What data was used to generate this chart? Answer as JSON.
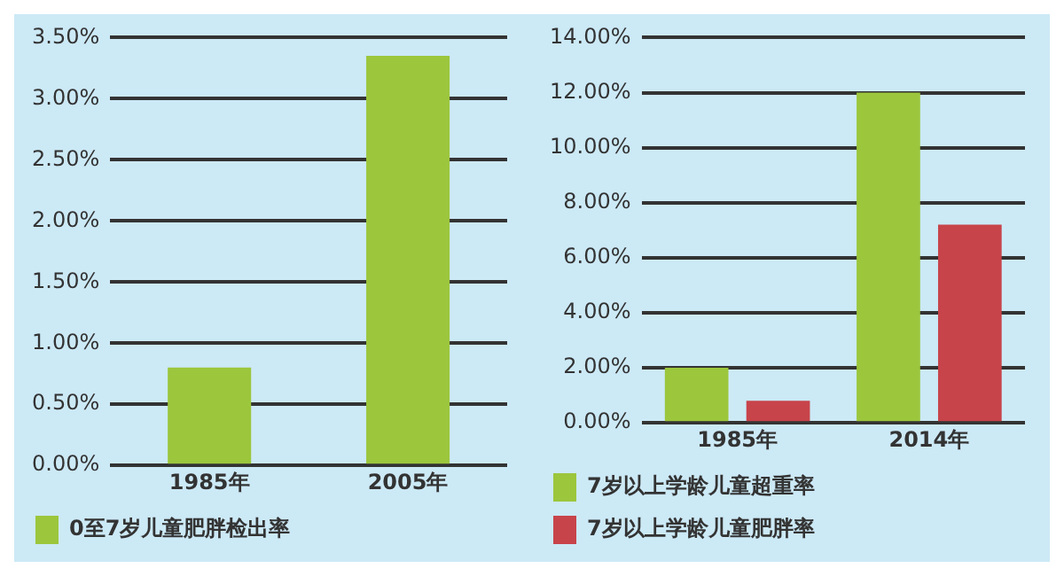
{
  "chart_data": [
    {
      "type": "bar",
      "categories": [
        "1985年",
        "2005年"
      ],
      "series": [
        {
          "name": "0至7岁儿童肥胖检出率",
          "color": "#9cc63c",
          "values": [
            0.8,
            3.35
          ]
        }
      ],
      "ylim": [
        0,
        3.5
      ],
      "yticks": [
        {
          "value": 0,
          "label": "0.00%"
        },
        {
          "value": 0.5,
          "label": "0.50%"
        },
        {
          "value": 1,
          "label": "1.00%"
        },
        {
          "value": 1.5,
          "label": "1.50%"
        },
        {
          "value": 2,
          "label": "2.00%"
        },
        {
          "value": 2.5,
          "label": "2.50%"
        },
        {
          "value": 3,
          "label": "3.00%"
        },
        {
          "value": 3.5,
          "label": "3.50%"
        }
      ],
      "grid": "y",
      "legend": "bottom"
    },
    {
      "type": "bar",
      "categories": [
        "1985年",
        "2014年"
      ],
      "series": [
        {
          "name": "7岁以上学龄儿童超重率",
          "color": "#9cc63c",
          "values": [
            2.0,
            12.0
          ]
        },
        {
          "name": "7岁以上学龄儿童肥胖率",
          "color": "#c7444a",
          "values": [
            0.8,
            7.2
          ]
        }
      ],
      "ylim": [
        0,
        14
      ],
      "yticks": [
        {
          "value": 0,
          "label": "0.00%"
        },
        {
          "value": 2,
          "label": "2.00%"
        },
        {
          "value": 4,
          "label": "4.00%"
        },
        {
          "value": 6,
          "label": "6.00%"
        },
        {
          "value": 8,
          "label": "8.00%"
        },
        {
          "value": 10,
          "label": "10.00%"
        },
        {
          "value": 12,
          "label": "12.00%"
        },
        {
          "value": 14,
          "label": "14.00%"
        }
      ],
      "grid": "y",
      "legend": "bottom"
    }
  ]
}
